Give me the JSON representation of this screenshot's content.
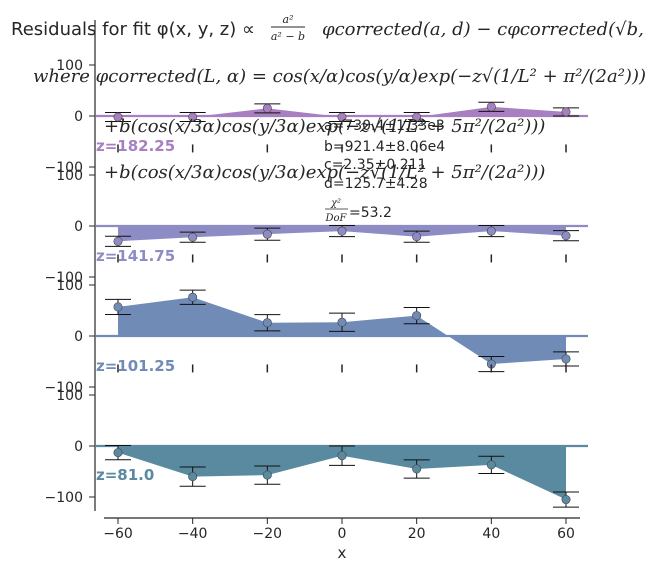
{
  "chart_data": {
    "type": "area",
    "title": {
      "line1_prefix": "Residuals for fit φ(x, y, z) ∝",
      "line1_frac_num": "a²",
      "line1_frac_den": "a² − b",
      "line1_suffix": "φcorrected(a, d) − cφcorrected(√b, d)",
      "line2": "where φcorrected(L, α) = cos(x/α)cos(y/α)exp(−z√(1/L² + π²/(2a²)))",
      "line3": "+b(cos(x/3α)cos(y/3α)exp(−z√(1/L² + 5π²/(2a²)))",
      "line4": "+b(cos(x/3α)cos(y/3α)exp(−z√(1/L² + 5π²/(2a²)))"
    },
    "xlabel": "x",
    "xticks": [
      -60,
      -40,
      -20,
      0,
      20,
      40,
      60
    ],
    "xtick_labels": [
      "−60",
      "−40",
      "−20",
      "0",
      "20",
      "40",
      "60"
    ],
    "yticks": [
      -100,
      0,
      100
    ],
    "ytick_labels": [
      "−100",
      "0",
      "100"
    ],
    "ylim_per_panel": [
      -130,
      130
    ],
    "grid": false,
    "annotations": {
      "a": "a=730.4±1.33e3",
      "b": "b=921.4±8.06e4",
      "c": "c=2.35±0.211",
      "d": "d=125.7±4.28",
      "chi_num": "χ²",
      "chi_den": "DoF",
      "chi_val": "=53.2"
    },
    "x": [
      -60,
      -40,
      -20,
      0,
      20,
      40,
      60
    ],
    "series": [
      {
        "name": "z=182.25",
        "color": "#a87fc0",
        "values": [
          -2,
          -2,
          15,
          -2,
          -2,
          18,
          8
        ],
        "errors": [
          3,
          3,
          3,
          3,
          3,
          3,
          2
        ]
      },
      {
        "name": "z=141.75",
        "color": "#8e8cc4",
        "values": [
          -30,
          -22,
          -16,
          -10,
          -21,
          -10,
          -19
        ],
        "errors": [
          4,
          4,
          6,
          5,
          5,
          5,
          4
        ]
      },
      {
        "name": "z=101.25",
        "color": "#718bb7",
        "values": [
          57,
          76,
          26,
          27,
          40,
          -55,
          -45
        ],
        "errors": [
          9,
          8,
          10,
          12,
          10,
          9,
          8
        ]
      },
      {
        "name": "z=81.0",
        "color": "#5a8aa0",
        "values": [
          -13,
          -60,
          -57,
          -19,
          -45,
          -37,
          -105
        ],
        "errors": [
          8,
          13,
          12,
          13,
          12,
          11,
          9
        ]
      }
    ]
  }
}
